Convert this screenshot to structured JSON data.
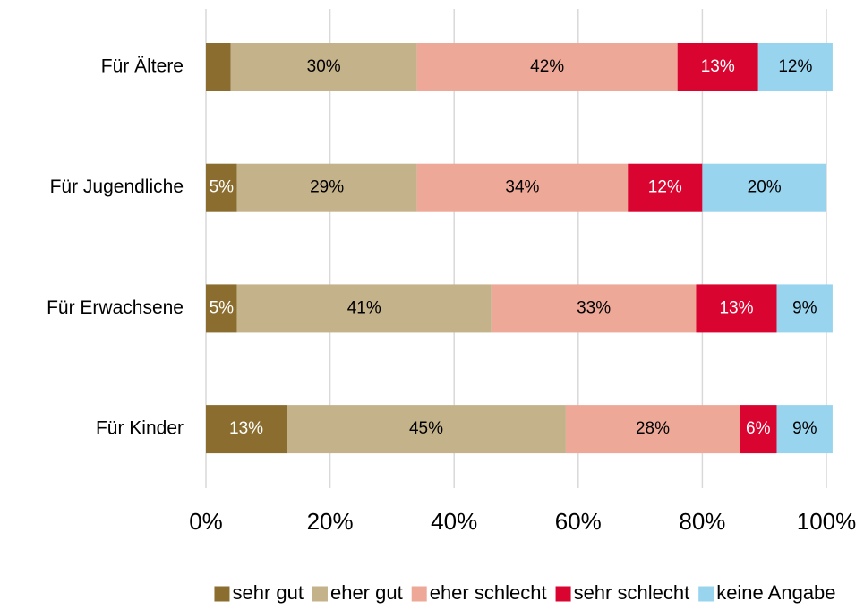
{
  "chart_data": {
    "type": "stacked_barh",
    "categories": [
      "Für Ältere",
      "Für Jugendliche",
      "Für Erwachsene",
      "Für Kinder"
    ],
    "series": [
      {
        "name": "sehr gut",
        "color": "#8b6d2f",
        "values": [
          4,
          5,
          5,
          13
        ],
        "value_labels": [
          null,
          "5%",
          "5%",
          "13%"
        ]
      },
      {
        "name": "eher gut",
        "color": "#c4b28a",
        "values": [
          30,
          29,
          41,
          45
        ],
        "value_labels": [
          "30%",
          "29%",
          "41%",
          "45%"
        ]
      },
      {
        "name": "eher schlecht",
        "color": "#eea898",
        "values": [
          42,
          34,
          33,
          28
        ],
        "value_labels": [
          "42%",
          "34%",
          "33%",
          "28%"
        ]
      },
      {
        "name": "sehr schlecht",
        "color": "#d9042f",
        "values": [
          13,
          12,
          13,
          6
        ],
        "value_labels": [
          "13%",
          "12%",
          "13%",
          "6%"
        ]
      },
      {
        "name": "keine Angabe",
        "color": "#98d4ee",
        "values": [
          12,
          20,
          9,
          9
        ],
        "value_labels": [
          "12%",
          "20%",
          "9%",
          "9%"
        ]
      }
    ],
    "xlim": [
      0,
      100
    ],
    "xticks": [
      {
        "value": 0,
        "label": "0%"
      },
      {
        "value": 20,
        "label": "20%"
      },
      {
        "value": 40,
        "label": "40%"
      },
      {
        "value": 60,
        "label": "60%"
      },
      {
        "value": 80,
        "label": "80%"
      },
      {
        "value": 100,
        "label": "100%"
      }
    ],
    "grid": true,
    "legend": "bottom"
  }
}
